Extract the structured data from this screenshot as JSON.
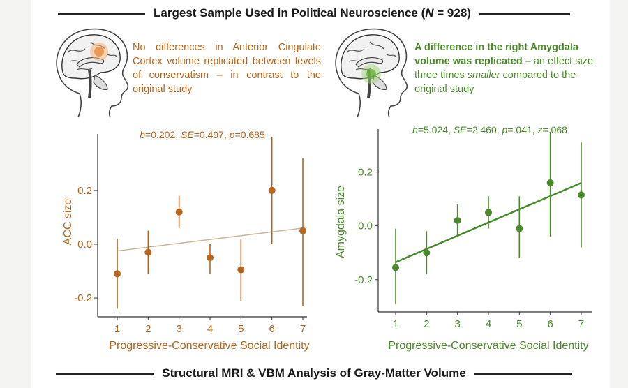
{
  "header": {
    "title_pre": "Largest Sample Used in Political Neuroscience (",
    "title_n": "N",
    "title_post": " = 928)"
  },
  "footer": {
    "title": "Structural MRI & VBM Analysis of Gray-Matter Volume"
  },
  "left_note": {
    "text": "No differences in Anterior Cingulate Cortex volume replicated between levels of conservatism – in contrast to the original study"
  },
  "right_note": {
    "bold": "A difference in the right Amygdala volume was replicated",
    "text1": " – an effect size three times ",
    "italic": "smaller",
    "text2": " compared to the original study"
  },
  "colors": {
    "acc": "#b5651d",
    "amygdala": "#4a8a2a",
    "acc_fit": "#c8b49a",
    "amygdala_fit": "#3f8a24"
  },
  "chart_data": [
    {
      "type": "scatter",
      "title": "",
      "stats_label": "b=0.202, SE=0.497, p=0.685",
      "xlabel": "Progressive-Conservative Social Identity",
      "ylabel": "ACC size",
      "x": [
        1,
        2,
        3,
        4,
        5,
        6,
        7
      ],
      "y": [
        -0.11,
        -0.03,
        0.12,
        -0.05,
        -0.095,
        0.2,
        0.05
      ],
      "err_low": [
        -0.24,
        -0.11,
        0.06,
        -0.11,
        -0.21,
        0.0,
        -0.23
      ],
      "err_high": [
        0.02,
        0.05,
        0.18,
        0.0,
        0.02,
        0.4,
        0.32
      ],
      "fit": {
        "x": [
          1,
          7
        ],
        "y": [
          -0.025,
          0.06
        ]
      },
      "xticks": [
        "1",
        "2",
        "3",
        "4",
        "5",
        "6",
        "7"
      ],
      "yticks": [
        -0.2,
        0.0,
        0.2
      ],
      "ytick_labels": [
        "-0.2",
        "0.0",
        "0.2"
      ],
      "ylim": [
        -0.27,
        0.41
      ]
    },
    {
      "type": "scatter",
      "title": "",
      "stats_label": "b=5.024, SE=2.460, p=.041, z=.068",
      "xlabel": "Progressive-Conservative Social Identity",
      "ylabel": "Amygdala size",
      "x": [
        1,
        2,
        3,
        4,
        5,
        6,
        7
      ],
      "y": [
        -0.155,
        -0.1,
        0.02,
        0.05,
        -0.01,
        0.16,
        0.115
      ],
      "err_low": [
        -0.29,
        -0.18,
        -0.04,
        -0.01,
        -0.12,
        -0.04,
        -0.08
      ],
      "err_high": [
        -0.01,
        -0.02,
        0.08,
        0.11,
        0.11,
        0.35,
        0.31
      ],
      "fit": {
        "x": [
          1,
          7
        ],
        "y": [
          -0.135,
          0.16
        ]
      },
      "xticks": [
        "1",
        "2",
        "3",
        "4",
        "5",
        "6",
        "7"
      ],
      "yticks": [
        -0.2,
        0.0,
        0.2
      ],
      "ytick_labels": [
        "-0.2",
        "0.0",
        "0.2"
      ],
      "ylim": [
        -0.32,
        0.36
      ]
    }
  ]
}
